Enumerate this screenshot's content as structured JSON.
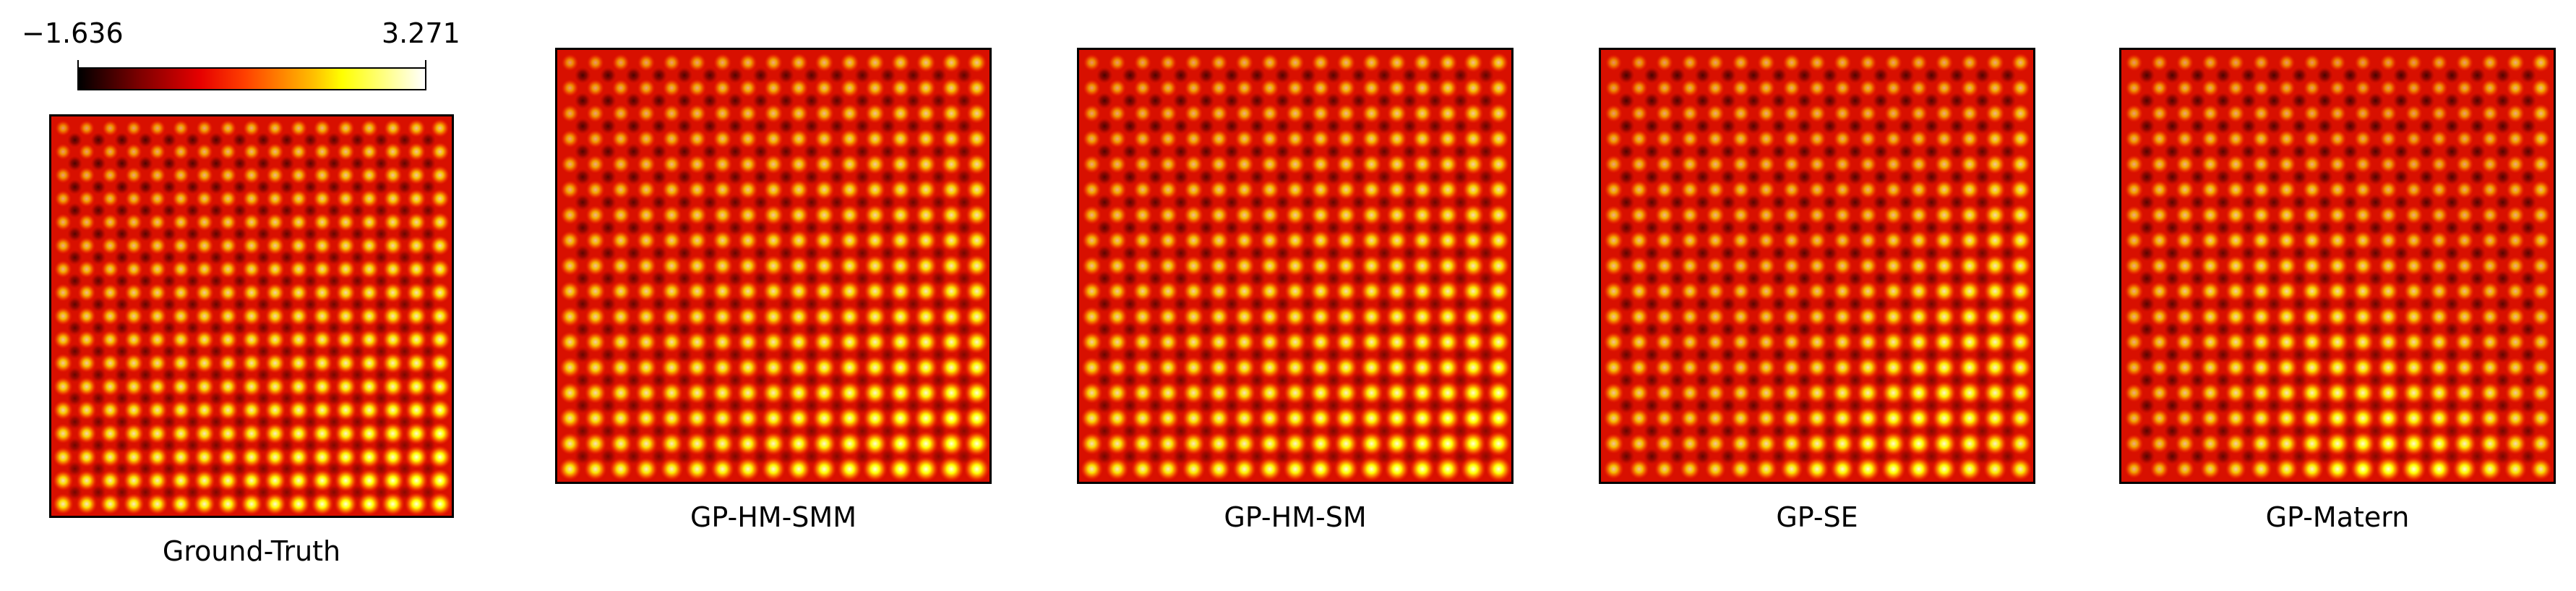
{
  "chart_data": {
    "type": "heatmap",
    "colormap": "hot",
    "colorbar": {
      "min_label": "−1.636",
      "max_label": "3.271",
      "vmin": -1.636,
      "vmax": 3.271
    },
    "panels": [
      {
        "title": "Ground-Truth"
      },
      {
        "title": "GP-HM-SMM"
      },
      {
        "title": "GP-HM-SM"
      },
      {
        "title": "GP-SE"
      },
      {
        "title": "GP-Matern"
      }
    ]
  }
}
